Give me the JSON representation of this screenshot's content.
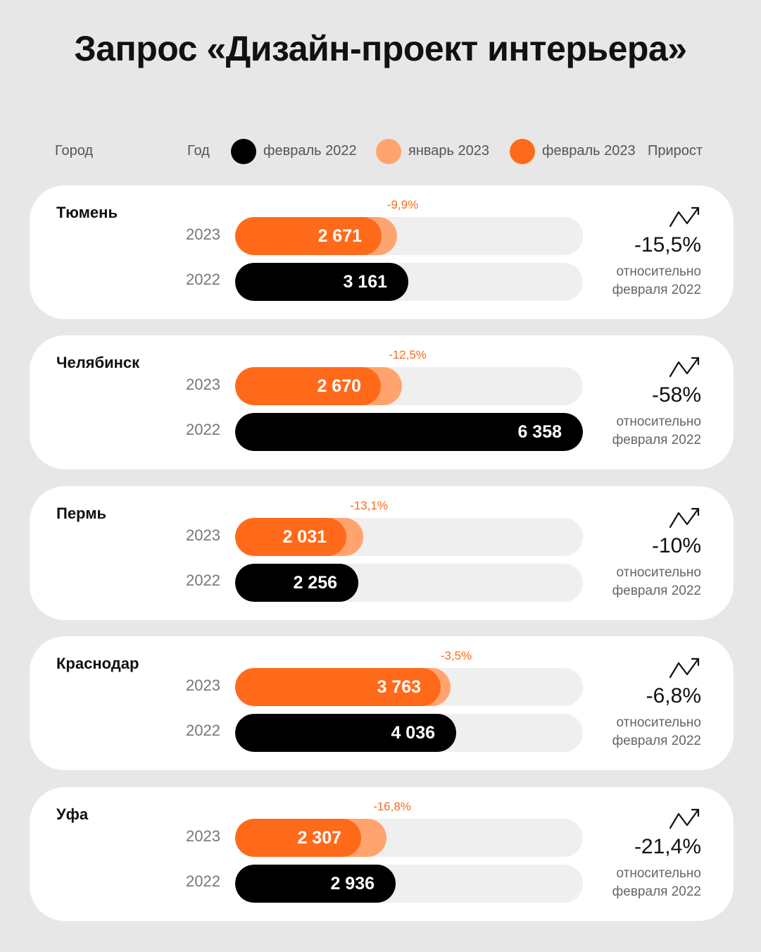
{
  "title": "Запрос «Дизайн-проект интерьера»",
  "legend": {
    "city": "Город",
    "year": "Год",
    "feb2022": "февраль 2022",
    "jan2023": "январь 2023",
    "feb2023": "февраль 2023",
    "growth": "Прирост"
  },
  "colors": {
    "feb2022": "#000000",
    "jan2023": "#ffa46e",
    "feb2023": "#ff6a1a",
    "track": "#efefef",
    "background": "#e7e7e7"
  },
  "year_labels": {
    "y2023": "2023",
    "y2022": "2022"
  },
  "relative_line1": "относительно",
  "relative_line2": "февраля 2022",
  "icon": "trend-arrow-icon",
  "chart_data": {
    "type": "bar",
    "orientation": "horizontal",
    "title": "Запрос «Дизайн-проект интерьера»",
    "series_names": [
      "февраль 2022",
      "январь 2023",
      "февраль 2023"
    ],
    "categories": [
      "Тюмень",
      "Челябинск",
      "Пермь",
      "Краснодар",
      "Уфа"
    ],
    "x_max": 6358,
    "cities": [
      {
        "name": "Тюмень",
        "feb2023": 2671,
        "feb2023_label": "2 671",
        "jan2023": 2965,
        "mom_change": "-9,9%",
        "feb2022": 3161,
        "feb2022_label": "3 161",
        "growth": "-15,5%"
      },
      {
        "name": "Челябинск",
        "feb2023": 2670,
        "feb2023_label": "2 670",
        "jan2023": 3051,
        "mom_change": "-12,5%",
        "feb2022": 6358,
        "feb2022_label": "6 358",
        "growth": "-58%"
      },
      {
        "name": "Пермь",
        "feb2023": 2031,
        "feb2023_label": "2 031",
        "jan2023": 2338,
        "mom_change": "-13,1%",
        "feb2022": 2256,
        "feb2022_label": "2 256",
        "growth": "-10%"
      },
      {
        "name": "Краснодар",
        "feb2023": 3763,
        "feb2023_label": "3 763",
        "jan2023": 3900,
        "mom_change": "-3,5%",
        "feb2022": 4036,
        "feb2022_label": "4 036",
        "growth": "-6,8%"
      },
      {
        "name": "Уфа",
        "feb2023": 2307,
        "feb2023_label": "2 307",
        "jan2023": 2773,
        "mom_change": "-16,8%",
        "feb2022": 2936,
        "feb2022_label": "2 936",
        "growth": "-21,4%"
      }
    ]
  }
}
